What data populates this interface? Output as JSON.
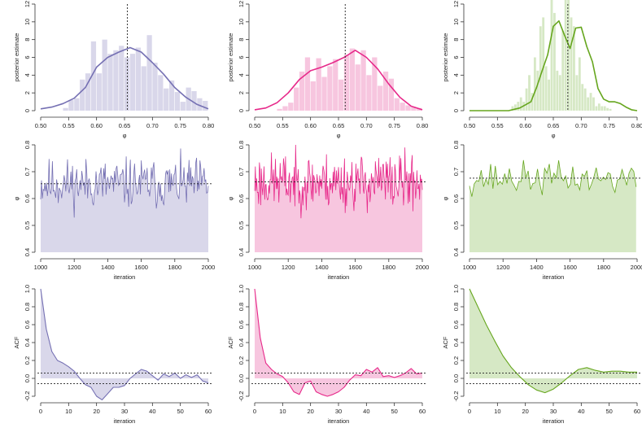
{
  "chart_data": [
    {
      "id": "hist1",
      "type": "bar",
      "panel": "histogram",
      "color": "#7570b3",
      "fill": "#d9d7ea",
      "ylabel": "posterior estimate",
      "xlabel": "φ",
      "xlim": [
        0.5,
        0.8
      ],
      "ylim": [
        0,
        12
      ],
      "xticks": [
        "0.50",
        "0.55",
        "0.60",
        "0.65",
        "0.70",
        "0.75",
        "0.80"
      ],
      "yticks": [
        "0",
        "2",
        "4",
        "6",
        "8",
        "10",
        "12"
      ],
      "ref_value": 0.655,
      "bin_start": 0.5,
      "bin_width": 0.01,
      "bin_heights": [
        0,
        0,
        0,
        0,
        0.3,
        1.2,
        1.4,
        3.5,
        4.2,
        7.8,
        4.2,
        8.0,
        6.4,
        6.8,
        7.3,
        6.0,
        6.4,
        7.1,
        5.0,
        8.5,
        5.4,
        4.0,
        2.5,
        3.4,
        2.1,
        1.0,
        2.6,
        2.2,
        1.4,
        1.1
      ],
      "density_x": [
        0.5,
        0.52,
        0.54,
        0.56,
        0.58,
        0.6,
        0.62,
        0.64,
        0.66,
        0.68,
        0.7,
        0.72,
        0.74,
        0.76,
        0.78,
        0.8
      ],
      "density_y": [
        0.2,
        0.4,
        0.8,
        1.4,
        2.6,
        4.9,
        6.0,
        6.6,
        7.1,
        6.6,
        5.4,
        4.1,
        2.6,
        1.5,
        0.7,
        0.2
      ]
    },
    {
      "id": "hist2",
      "type": "bar",
      "panel": "histogram",
      "color": "#e7298a",
      "fill": "#f7c6df",
      "ylabel": "posterior estimate",
      "xlabel": "φ",
      "xlim": [
        0.5,
        0.8
      ],
      "ylim": [
        0,
        12
      ],
      "xticks": [
        "0.50",
        "0.55",
        "0.60",
        "0.65",
        "0.70",
        "0.75",
        "0.80"
      ],
      "yticks": [
        "0",
        "2",
        "4",
        "6",
        "8",
        "10",
        "12"
      ],
      "ref_value": 0.662,
      "bin_start": 0.5,
      "bin_width": 0.01,
      "bin_heights": [
        0,
        0,
        0,
        0,
        0.2,
        0.5,
        0.9,
        2.6,
        4.4,
        6.0,
        3.3,
        5.9,
        3.8,
        5.0,
        5.8,
        3.5,
        6.3,
        7.0,
        5.2,
        6.8,
        4.0,
        6.0,
        2.8,
        4.4,
        3.6,
        1.4,
        0.9,
        0.6,
        0.4,
        0.3
      ],
      "density_x": [
        0.5,
        0.52,
        0.54,
        0.56,
        0.58,
        0.6,
        0.62,
        0.64,
        0.66,
        0.68,
        0.7,
        0.72,
        0.74,
        0.76,
        0.78,
        0.8
      ],
      "density_y": [
        0.1,
        0.3,
        0.9,
        2.0,
        3.5,
        4.5,
        4.9,
        5.4,
        6.0,
        6.8,
        6.0,
        4.7,
        3.0,
        1.5,
        0.5,
        0.1
      ]
    },
    {
      "id": "hist3",
      "type": "bar",
      "panel": "histogram",
      "color": "#66a61e",
      "fill": "#d6e8c5",
      "ylabel": "posterior estimate",
      "xlabel": "φ",
      "xlim": [
        0.5,
        0.8
      ],
      "ylim": [
        0,
        12
      ],
      "xticks": [
        "0.50",
        "0.55",
        "0.60",
        "0.65",
        "0.70",
        "0.75",
        "0.80"
      ],
      "yticks": [
        "0",
        "2",
        "4",
        "6",
        "8",
        "10",
        "12"
      ],
      "ref_value": 0.676,
      "bin_start": 0.5,
      "bin_width": 0.005,
      "bin_heights": [
        0,
        0,
        0,
        0,
        0,
        0,
        0,
        0,
        0,
        0,
        0,
        0,
        0,
        0,
        0,
        0.5,
        0.7,
        1.0,
        1.5,
        1.0,
        2.5,
        4.0,
        2.0,
        6.0,
        4.5,
        9.5,
        10.5,
        5.0,
        3.5,
        12.5,
        11.0,
        4.5,
        4.0,
        9.0,
        12.5,
        12.5,
        10.5,
        9.5,
        4.0,
        6.0,
        3.0,
        2.5,
        1.5,
        2.0,
        1.5,
        0.5,
        0.8,
        0.5,
        0.5,
        0.3,
        0.2,
        0,
        0,
        0,
        0,
        0,
        0,
        0,
        0,
        0
      ],
      "density_x": [
        0.5,
        0.57,
        0.59,
        0.61,
        0.62,
        0.63,
        0.64,
        0.65,
        0.66,
        0.67,
        0.68,
        0.69,
        0.7,
        0.71,
        0.72,
        0.73,
        0.74,
        0.75,
        0.76,
        0.77,
        0.78,
        0.79,
        0.8
      ],
      "density_y": [
        0,
        0,
        0.3,
        1.0,
        2.6,
        4.5,
        6.3,
        9.5,
        10.1,
        8.5,
        7.0,
        9.3,
        9.4,
        7.2,
        5.5,
        2.5,
        1.3,
        1.0,
        1.0,
        0.8,
        0.4,
        0.1,
        0
      ]
    },
    {
      "id": "trace1",
      "type": "line",
      "panel": "trace",
      "color": "#7570b3",
      "fill": "#d9d7ea",
      "ylabel": "φ",
      "xlabel": "iteration",
      "xlim": [
        1000,
        2000
      ],
      "ylim": [
        0.4,
        0.8
      ],
      "xticks": [
        "1000",
        "1200",
        "1400",
        "1600",
        "1800",
        "2000"
      ],
      "yticks": [
        "0.4",
        "0.5",
        "0.6",
        "0.7",
        "0.8"
      ],
      "ref_value": 0.655,
      "trace_start": 1000,
      "trace_step": 5,
      "mean": 0.655,
      "sd": 0.046,
      "seed": 11
    },
    {
      "id": "trace2",
      "type": "line",
      "panel": "trace",
      "color": "#e7298a",
      "fill": "#f7c6df",
      "ylabel": "φ",
      "xlabel": "iteration",
      "xlim": [
        1000,
        2000
      ],
      "ylim": [
        0.4,
        0.8
      ],
      "xticks": [
        "1000",
        "1200",
        "1400",
        "1600",
        "1800",
        "2000"
      ],
      "yticks": [
        "0.4",
        "0.5",
        "0.6",
        "0.7",
        "0.8"
      ],
      "ref_value": 0.662,
      "trace_start": 1000,
      "trace_step": 4,
      "mean": 0.662,
      "sd": 0.052,
      "seed": 23
    },
    {
      "id": "trace3",
      "type": "line",
      "panel": "trace",
      "color": "#66a61e",
      "fill": "#d6e8c5",
      "ylabel": "φ",
      "xlabel": "iteration",
      "xlim": [
        1000,
        2000
      ],
      "ylim": [
        0.4,
        0.8
      ],
      "xticks": [
        "1000",
        "1200",
        "1400",
        "1600",
        "1800",
        "2000"
      ],
      "yticks": [
        "0.4",
        "0.5",
        "0.6",
        "0.7",
        "0.8"
      ],
      "ref_value": 0.676,
      "trace_start": 1000,
      "trace_step": 14,
      "mean": 0.675,
      "sd": 0.03,
      "seed": 37
    },
    {
      "id": "acf1",
      "type": "area",
      "panel": "acf",
      "color": "#7570b3",
      "fill": "#d9d7ea",
      "ylabel": "ACF",
      "xlabel": "iteration",
      "xlim": [
        0,
        60
      ],
      "ylim": [
        -0.2,
        1.0
      ],
      "xticks": [
        "0",
        "10",
        "20",
        "30",
        "40",
        "50",
        "60"
      ],
      "yticks": [
        "-0.2",
        "0.0",
        "0.2",
        "0.4",
        "0.6",
        "0.8",
        "1.0"
      ],
      "ci_upper": 0.06,
      "ci_lower": -0.06,
      "lags": [
        0,
        2,
        4,
        6,
        8,
        10,
        12,
        14,
        16,
        18,
        20,
        22,
        24,
        26,
        28,
        30,
        32,
        34,
        36,
        38,
        40,
        42,
        44,
        46,
        48,
        50,
        52,
        54,
        56,
        58,
        60
      ],
      "acf": [
        1.0,
        0.55,
        0.3,
        0.2,
        0.17,
        0.13,
        0.08,
        0.0,
        -0.07,
        -0.1,
        -0.2,
        -0.24,
        -0.17,
        -0.1,
        -0.1,
        -0.08,
        0.0,
        0.05,
        0.1,
        0.08,
        0.03,
        -0.02,
        0.05,
        0.02,
        0.06,
        0.0,
        0.04,
        0.01,
        0.04,
        -0.03,
        -0.05
      ]
    },
    {
      "id": "acf2",
      "type": "area",
      "panel": "acf",
      "color": "#e7298a",
      "fill": "#f7c6df",
      "ylabel": "ACF",
      "xlabel": "iteration",
      "xlim": [
        0,
        60
      ],
      "ylim": [
        -0.2,
        1.0
      ],
      "xticks": [
        "0",
        "10",
        "20",
        "30",
        "40",
        "50",
        "60"
      ],
      "yticks": [
        "-0.2",
        "0.0",
        "0.2",
        "0.4",
        "0.6",
        "0.8",
        "1.0"
      ],
      "ci_upper": 0.06,
      "ci_lower": -0.06,
      "lags": [
        0,
        2,
        4,
        6,
        8,
        10,
        12,
        14,
        16,
        18,
        20,
        22,
        24,
        26,
        28,
        30,
        32,
        34,
        36,
        38,
        40,
        42,
        44,
        46,
        48,
        50,
        52,
        54,
        56,
        58,
        60
      ],
      "acf": [
        1.0,
        0.45,
        0.17,
        0.1,
        0.05,
        0.02,
        -0.05,
        -0.15,
        -0.18,
        -0.05,
        -0.03,
        -0.15,
        -0.18,
        -0.2,
        -0.18,
        -0.15,
        -0.1,
        -0.02,
        0.04,
        0.03,
        0.1,
        0.07,
        0.12,
        0.02,
        0.03,
        0.01,
        0.03,
        0.06,
        0.11,
        0.05,
        0.06
      ]
    },
    {
      "id": "acf3",
      "type": "area",
      "panel": "acf",
      "color": "#66a61e",
      "fill": "#d6e8c5",
      "ylabel": "ACF",
      "xlabel": "iteration",
      "xlim": [
        0,
        60
      ],
      "ylim": [
        -0.2,
        1.0
      ],
      "xticks": [
        "0",
        "10",
        "20",
        "30",
        "40",
        "50",
        "60"
      ],
      "yticks": [
        "-0.2",
        "0.0",
        "0.2",
        "0.4",
        "0.6",
        "0.8",
        "1.0"
      ],
      "ci_upper": 0.06,
      "ci_lower": -0.06,
      "lags": [
        0,
        3,
        6,
        9,
        12,
        15,
        18,
        21,
        24,
        27,
        30,
        33,
        36,
        39,
        42,
        45,
        48,
        51,
        54,
        57,
        60
      ],
      "acf": [
        1.0,
        0.8,
        0.6,
        0.42,
        0.25,
        0.12,
        0.02,
        -0.07,
        -0.13,
        -0.16,
        -0.12,
        -0.05,
        0.03,
        0.1,
        0.12,
        0.09,
        0.07,
        0.08,
        0.08,
        0.07,
        0.07
      ]
    }
  ]
}
